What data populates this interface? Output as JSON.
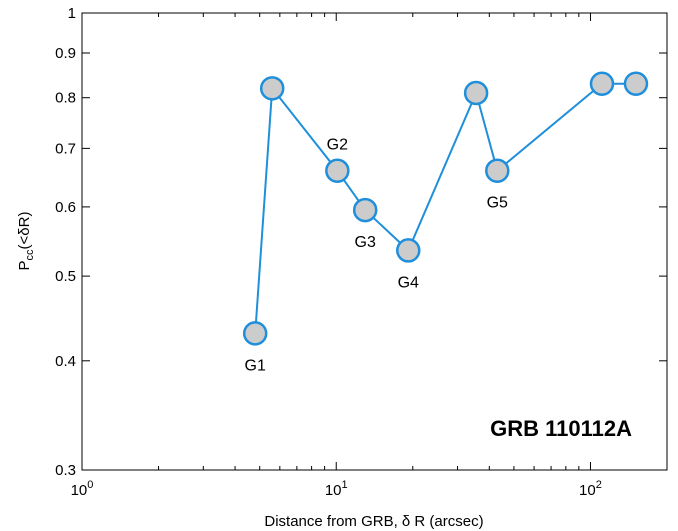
{
  "chart_data": {
    "type": "scatter",
    "title": "",
    "xlabel": "Distance from GRB, δ R  (arcsec)",
    "ylabel": "P_cc(<δR)",
    "ylabel_main": "P",
    "ylabel_sub": "cc",
    "ylabel_paren": "(<δR)",
    "xscale": "log",
    "yscale": "log",
    "xlim": [
      1,
      200
    ],
    "ylim": [
      0.3,
      1
    ],
    "grid": false,
    "annotation": "GRB 110112A",
    "annotation_placement": "bottom-right",
    "x_ticks": [
      {
        "value": 1,
        "base": "10",
        "exp": "0"
      },
      {
        "value": 10,
        "base": "10",
        "exp": "1"
      },
      {
        "value": 100,
        "base": "10",
        "exp": "2"
      }
    ],
    "y_ticks": [
      {
        "value": 0.3,
        "label": "0.3"
      },
      {
        "value": 0.4,
        "label": "0.4"
      },
      {
        "value": 0.5,
        "label": "0.5"
      },
      {
        "value": 0.6,
        "label": "0.6"
      },
      {
        "value": 0.7,
        "label": "0.7"
      },
      {
        "value": 0.8,
        "label": "0.8"
      },
      {
        "value": 0.9,
        "label": "0.9"
      },
      {
        "value": 1,
        "label": "1"
      }
    ],
    "series": [
      {
        "line_color": "#1f8fdb",
        "marker_fill": "#cccccc",
        "marker_edge": "#1f8fdb",
        "points": [
          {
            "x": 4.8,
            "y": 0.43,
            "label": "G1",
            "label_pos": "below"
          },
          {
            "x": 5.6,
            "y": 0.82,
            "label": "",
            "label_pos": ""
          },
          {
            "x": 10.1,
            "y": 0.66,
            "label": "G2",
            "label_pos": "above"
          },
          {
            "x": 13.0,
            "y": 0.595,
            "label": "G3",
            "label_pos": "below"
          },
          {
            "x": 19.2,
            "y": 0.535,
            "label": "G4",
            "label_pos": "below"
          },
          {
            "x": 35.5,
            "y": 0.81,
            "label": "",
            "label_pos": ""
          },
          {
            "x": 43.0,
            "y": 0.66,
            "label": "G5",
            "label_pos": "below"
          },
          {
            "x": 111.0,
            "y": 0.83,
            "label": "",
            "label_pos": ""
          },
          {
            "x": 151.0,
            "y": 0.83,
            "label": "",
            "label_pos": ""
          }
        ]
      }
    ]
  }
}
